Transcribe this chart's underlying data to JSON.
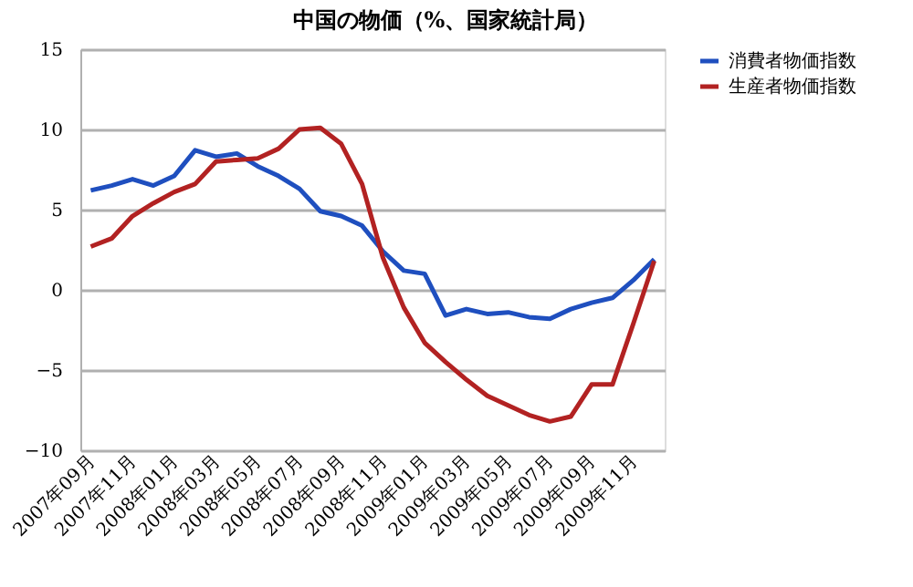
{
  "chart_data": {
    "type": "line",
    "title": "中国の物価（%、国家統計局）",
    "categories": [
      "2007年09月",
      null,
      "2007年11月",
      null,
      "2008年01月",
      null,
      "2008年03月",
      null,
      "2008年05月",
      null,
      "2008年07月",
      null,
      "2008年09月",
      null,
      "2008年11月",
      null,
      "2009年01月",
      null,
      "2009年03月",
      null,
      "2009年05月",
      null,
      "2009年07月",
      null,
      "2009年09月",
      null,
      "2009年11月",
      null
    ],
    "series": [
      {
        "name": "消費者物価指数",
        "color": "#1f4fbf",
        "values": [
          6.2,
          6.5,
          6.9,
          6.5,
          7.1,
          8.7,
          8.3,
          8.5,
          7.7,
          7.1,
          6.3,
          4.9,
          4.6,
          4.0,
          2.4,
          1.2,
          1.0,
          -1.6,
          -1.2,
          -1.5,
          -1.4,
          -1.7,
          -1.8,
          -1.2,
          -0.8,
          -0.5,
          0.6,
          1.9
        ]
      },
      {
        "name": "生産者物価指数",
        "color": "#b22222",
        "values": [
          2.7,
          3.2,
          4.6,
          5.4,
          6.1,
          6.6,
          8.0,
          8.1,
          8.2,
          8.8,
          10.0,
          10.1,
          9.1,
          6.6,
          2.0,
          -1.1,
          -3.3,
          -4.5,
          -5.6,
          -6.6,
          -7.2,
          -7.8,
          -8.2,
          -7.9,
          -5.9,
          -5.9,
          -2.1,
          1.8
        ]
      }
    ],
    "ylim": [
      -10,
      15
    ],
    "yticks": [
      -10,
      -5,
      0,
      5,
      10,
      15
    ],
    "grid": "y",
    "legend": "right",
    "marker": "none",
    "line_style": "solid"
  }
}
